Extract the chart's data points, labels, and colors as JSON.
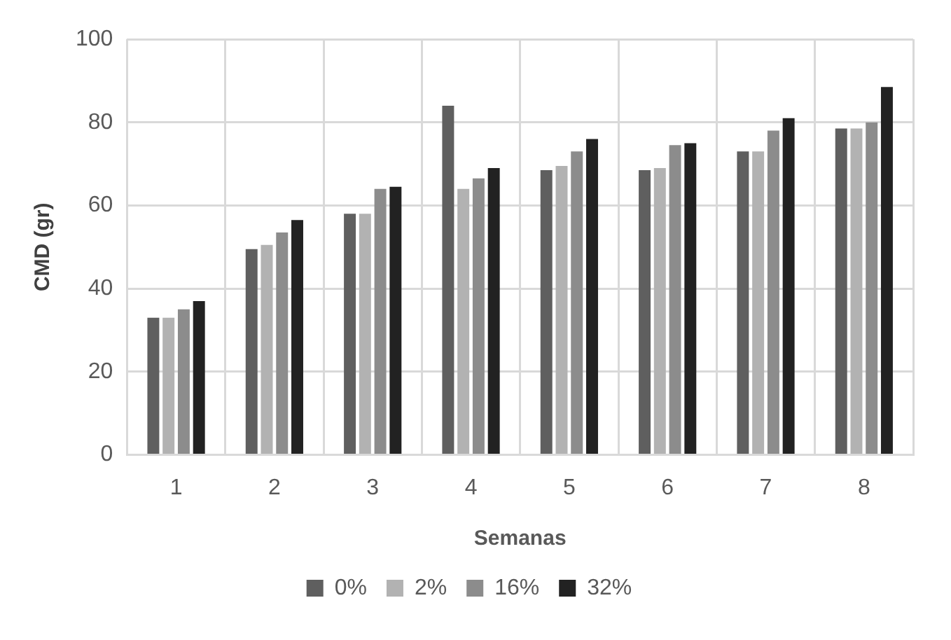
{
  "chart_data": {
    "type": "bar",
    "xlabel": "Semanas",
    "ylabel": "CMD (gr)",
    "categories": [
      "1",
      "2",
      "3",
      "4",
      "5",
      "6",
      "7",
      "8"
    ],
    "series": [
      {
        "name": "0%",
        "color": "#5f5f5f",
        "values": [
          33,
          49.5,
          58,
          84,
          68.5,
          68.5,
          73,
          78.5
        ]
      },
      {
        "name": "2%",
        "color": "#b2b2b2",
        "values": [
          33,
          50.5,
          58,
          64,
          69.5,
          69,
          73,
          78.5
        ]
      },
      {
        "name": "16%",
        "color": "#8c8c8c",
        "values": [
          35,
          53.5,
          64,
          66.5,
          73,
          74.5,
          78,
          80
        ]
      },
      {
        "name": "32%",
        "color": "#222222",
        "values": [
          37,
          56.5,
          64.5,
          69,
          76,
          75,
          81,
          88.5
        ]
      }
    ],
    "ylim": [
      0,
      100
    ],
    "yticks": [
      0,
      20,
      40,
      60,
      80,
      100
    ],
    "grid": true,
    "legend": "bottom"
  }
}
